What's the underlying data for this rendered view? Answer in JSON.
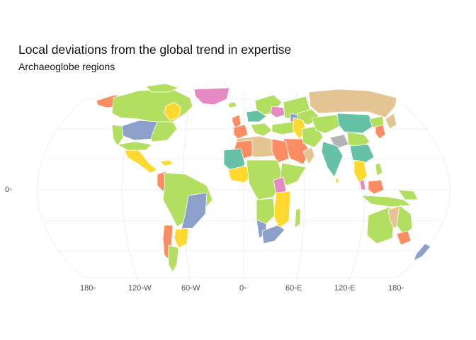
{
  "plot": {
    "title": "Local deviations from the global trend in expertise",
    "subtitle": "Archaeoglobe regions"
  },
  "axes": {
    "y_label": "0◦",
    "x_labels": [
      "180◦",
      "120◦W",
      "60◦W",
      "0◦",
      "60◦E",
      "120◦E",
      "180◦"
    ]
  },
  "palette": {
    "green": "#b2df60",
    "teal": "#66c2a5",
    "salmon": "#fc8d62",
    "blue": "#8da0cb",
    "pink": "#e78ac3",
    "yellow": "#ffd92f",
    "tan": "#e5c494",
    "grey": "#b3b3b3"
  }
}
